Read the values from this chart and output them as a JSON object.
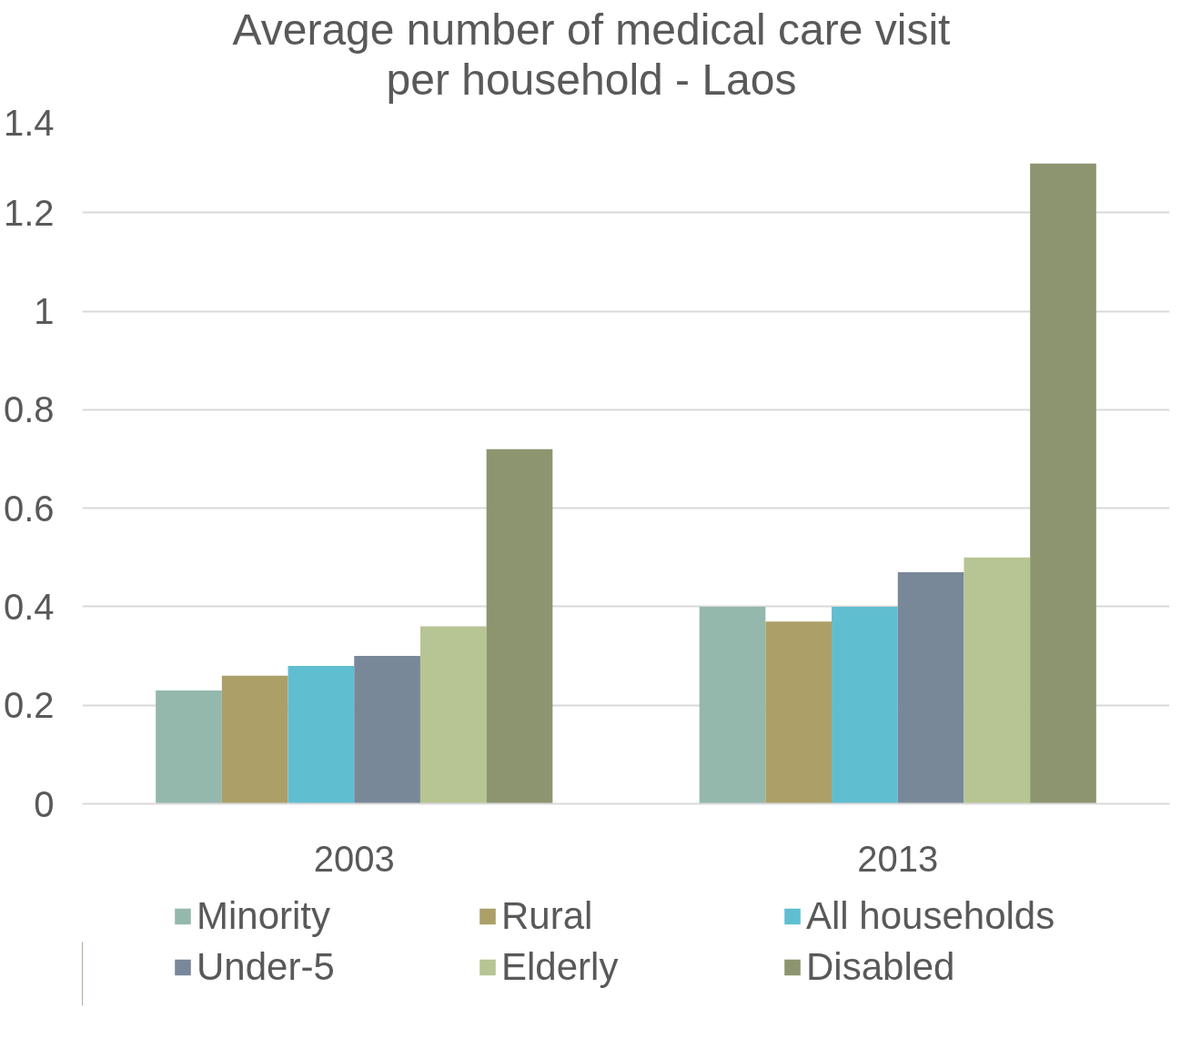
{
  "chart_data": {
    "type": "bar",
    "title": "Average number of medical care visit\nper household  - Laos",
    "categories": [
      "2003",
      "2013"
    ],
    "series": [
      {
        "name": "Minority",
        "color": "#95b8ac",
        "values": [
          0.23,
          0.4
        ]
      },
      {
        "name": "Rural",
        "color": "#ac9f68",
        "values": [
          0.26,
          0.37
        ]
      },
      {
        "name": "All households",
        "color": "#60bed1",
        "values": [
          0.28,
          0.4
        ]
      },
      {
        "name": "Under-5",
        "color": "#798899",
        "values": [
          0.3,
          0.47
        ]
      },
      {
        "name": "Elderly",
        "color": "#b6c593",
        "values": [
          0.36,
          0.5
        ]
      },
      {
        "name": "Disabled",
        "color": "#8c9570",
        "values": [
          0.72,
          1.3
        ]
      }
    ],
    "ylim": [
      0,
      1.4
    ],
    "yticks": [
      0,
      {
        "value": 0.2,
        "label": "0.2"
      },
      {
        "value": 0.4,
        "label": "0.4"
      },
      {
        "value": 0.6,
        "label": "0.6"
      },
      {
        "value": 0.8,
        "label": "0.8"
      },
      1,
      {
        "value": 1.2,
        "label": "1.2"
      },
      {
        "value": 1.4,
        "label": "1.4"
      }
    ],
    "grid": "y",
    "legend": "bottom"
  }
}
